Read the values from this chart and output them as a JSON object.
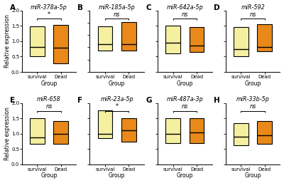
{
  "panels": [
    {
      "label": "A",
      "title": "miR-378a-5p",
      "groups": [
        "survival",
        "Dead"
      ],
      "colors": [
        "#F5F0A0",
        "#E8891A"
      ],
      "ylim": [
        0.0,
        2.0
      ],
      "yticks": [
        0.0,
        0.5,
        1.0,
        1.5,
        2.0
      ],
      "boxes": [
        {
          "q1": 0.52,
          "median": 0.82,
          "q3": 1.48,
          "whislo": 0.52,
          "whishi": 1.48
        },
        {
          "q1": 0.28,
          "median": 0.78,
          "q3": 1.52,
          "whislo": 0.28,
          "whishi": 1.52
        }
      ],
      "sig": "*"
    },
    {
      "label": "B",
      "title": "miR-185a-5p",
      "groups": [
        "survival",
        "Dead"
      ],
      "colors": [
        "#F5F0A0",
        "#E8891A"
      ],
      "ylim": [
        0.0,
        2.5
      ],
      "yticks": [
        0.0,
        0.5,
        1.0,
        1.5,
        2.0,
        2.5
      ],
      "boxes": [
        {
          "q1": 0.88,
          "median": 1.12,
          "q3": 1.85,
          "whislo": 0.88,
          "whishi": 1.85
        },
        {
          "q1": 0.88,
          "median": 1.12,
          "q3": 2.02,
          "whislo": 0.88,
          "whishi": 2.02
        }
      ],
      "sig": "ns"
    },
    {
      "label": "C",
      "title": "miR-642a-5p",
      "groups": [
        "survival",
        "Dead"
      ],
      "colors": [
        "#F5F0A0",
        "#E8891A"
      ],
      "ylim": [
        0.0,
        2.0
      ],
      "yticks": [
        0.0,
        0.5,
        1.0,
        1.5,
        2.0
      ],
      "boxes": [
        {
          "q1": 0.6,
          "median": 0.95,
          "q3": 1.5,
          "whislo": 0.6,
          "whishi": 1.5
        },
        {
          "q1": 0.65,
          "median": 0.85,
          "q3": 1.45,
          "whislo": 0.65,
          "whishi": 1.45
        }
      ],
      "sig": "ns"
    },
    {
      "label": "D",
      "title": "miR-592",
      "groups": [
        "survival",
        "Dead"
      ],
      "colors": [
        "#F5F0A0",
        "#E8891A"
      ],
      "ylim": [
        0.0,
        2.0
      ],
      "yticks": [
        0.0,
        0.5,
        1.0,
        1.5,
        2.0
      ],
      "boxes": [
        {
          "q1": 0.5,
          "median": 0.75,
          "q3": 1.45,
          "whislo": 0.5,
          "whishi": 1.45
        },
        {
          "q1": 0.68,
          "median": 0.82,
          "q3": 1.55,
          "whislo": 0.68,
          "whishi": 1.55
        }
      ],
      "sig": "ns"
    },
    {
      "label": "E",
      "title": "miR-658",
      "groups": [
        "survival",
        "Dead"
      ],
      "colors": [
        "#F5F0A0",
        "#E8891A"
      ],
      "ylim": [
        0.0,
        2.0
      ],
      "yticks": [
        0.0,
        0.5,
        1.0,
        1.5,
        2.0
      ],
      "boxes": [
        {
          "q1": 0.68,
          "median": 0.88,
          "q3": 1.5,
          "whislo": 0.68,
          "whishi": 1.5
        },
        {
          "q1": 0.68,
          "median": 1.0,
          "q3": 1.42,
          "whislo": 0.68,
          "whishi": 1.42
        }
      ],
      "sig": "ns"
    },
    {
      "label": "F",
      "title": "miR-23a-5p",
      "groups": [
        "survival",
        "Dead"
      ],
      "colors": [
        "#F5F0A0",
        "#E8891A"
      ],
      "ylim": [
        0.0,
        2.0
      ],
      "yticks": [
        0.0,
        0.5,
        1.0,
        1.5,
        2.0
      ],
      "boxes": [
        {
          "q1": 0.85,
          "median": 1.0,
          "q3": 1.75,
          "whislo": 0.85,
          "whishi": 1.75
        },
        {
          "q1": 0.75,
          "median": 1.1,
          "q3": 1.5,
          "whislo": 0.75,
          "whishi": 1.5
        }
      ],
      "sig": "*"
    },
    {
      "label": "G",
      "title": "miR-487a-3p",
      "groups": [
        "survival",
        "Dead"
      ],
      "colors": [
        "#F5F0A0",
        "#E8891A"
      ],
      "ylim": [
        0.0,
        2.0
      ],
      "yticks": [
        0.0,
        0.5,
        1.0,
        1.5,
        2.0
      ],
      "boxes": [
        {
          "q1": 0.7,
          "median": 1.0,
          "q3": 1.5,
          "whislo": 0.7,
          "whishi": 1.5
        },
        {
          "q1": 0.7,
          "median": 1.05,
          "q3": 1.5,
          "whislo": 0.7,
          "whishi": 1.5
        }
      ],
      "sig": "ns"
    },
    {
      "label": "H",
      "title": "miR-33b-5p",
      "groups": [
        "survival",
        "Dead"
      ],
      "colors": [
        "#F5F0A0",
        "#E8891A"
      ],
      "ylim": [
        0.0,
        2.0
      ],
      "yticks": [
        0.0,
        0.5,
        1.0,
        1.5,
        2.0
      ],
      "boxes": [
        {
          "q1": 0.62,
          "median": 0.9,
          "q3": 1.35,
          "whislo": 0.62,
          "whishi": 1.35
        },
        {
          "q1": 0.68,
          "median": 0.95,
          "q3": 1.42,
          "whislo": 0.68,
          "whishi": 1.42
        }
      ],
      "sig": "ns"
    }
  ],
  "ylabel": "Relative expression",
  "xlabel": "Group",
  "bg_color": "#FFFFFF",
  "title_fontsize": 5.8,
  "label_fontsize": 5.5,
  "tick_fontsize": 5.0,
  "sig_fontsize": 5.8,
  "panel_label_fontsize": 7.5
}
